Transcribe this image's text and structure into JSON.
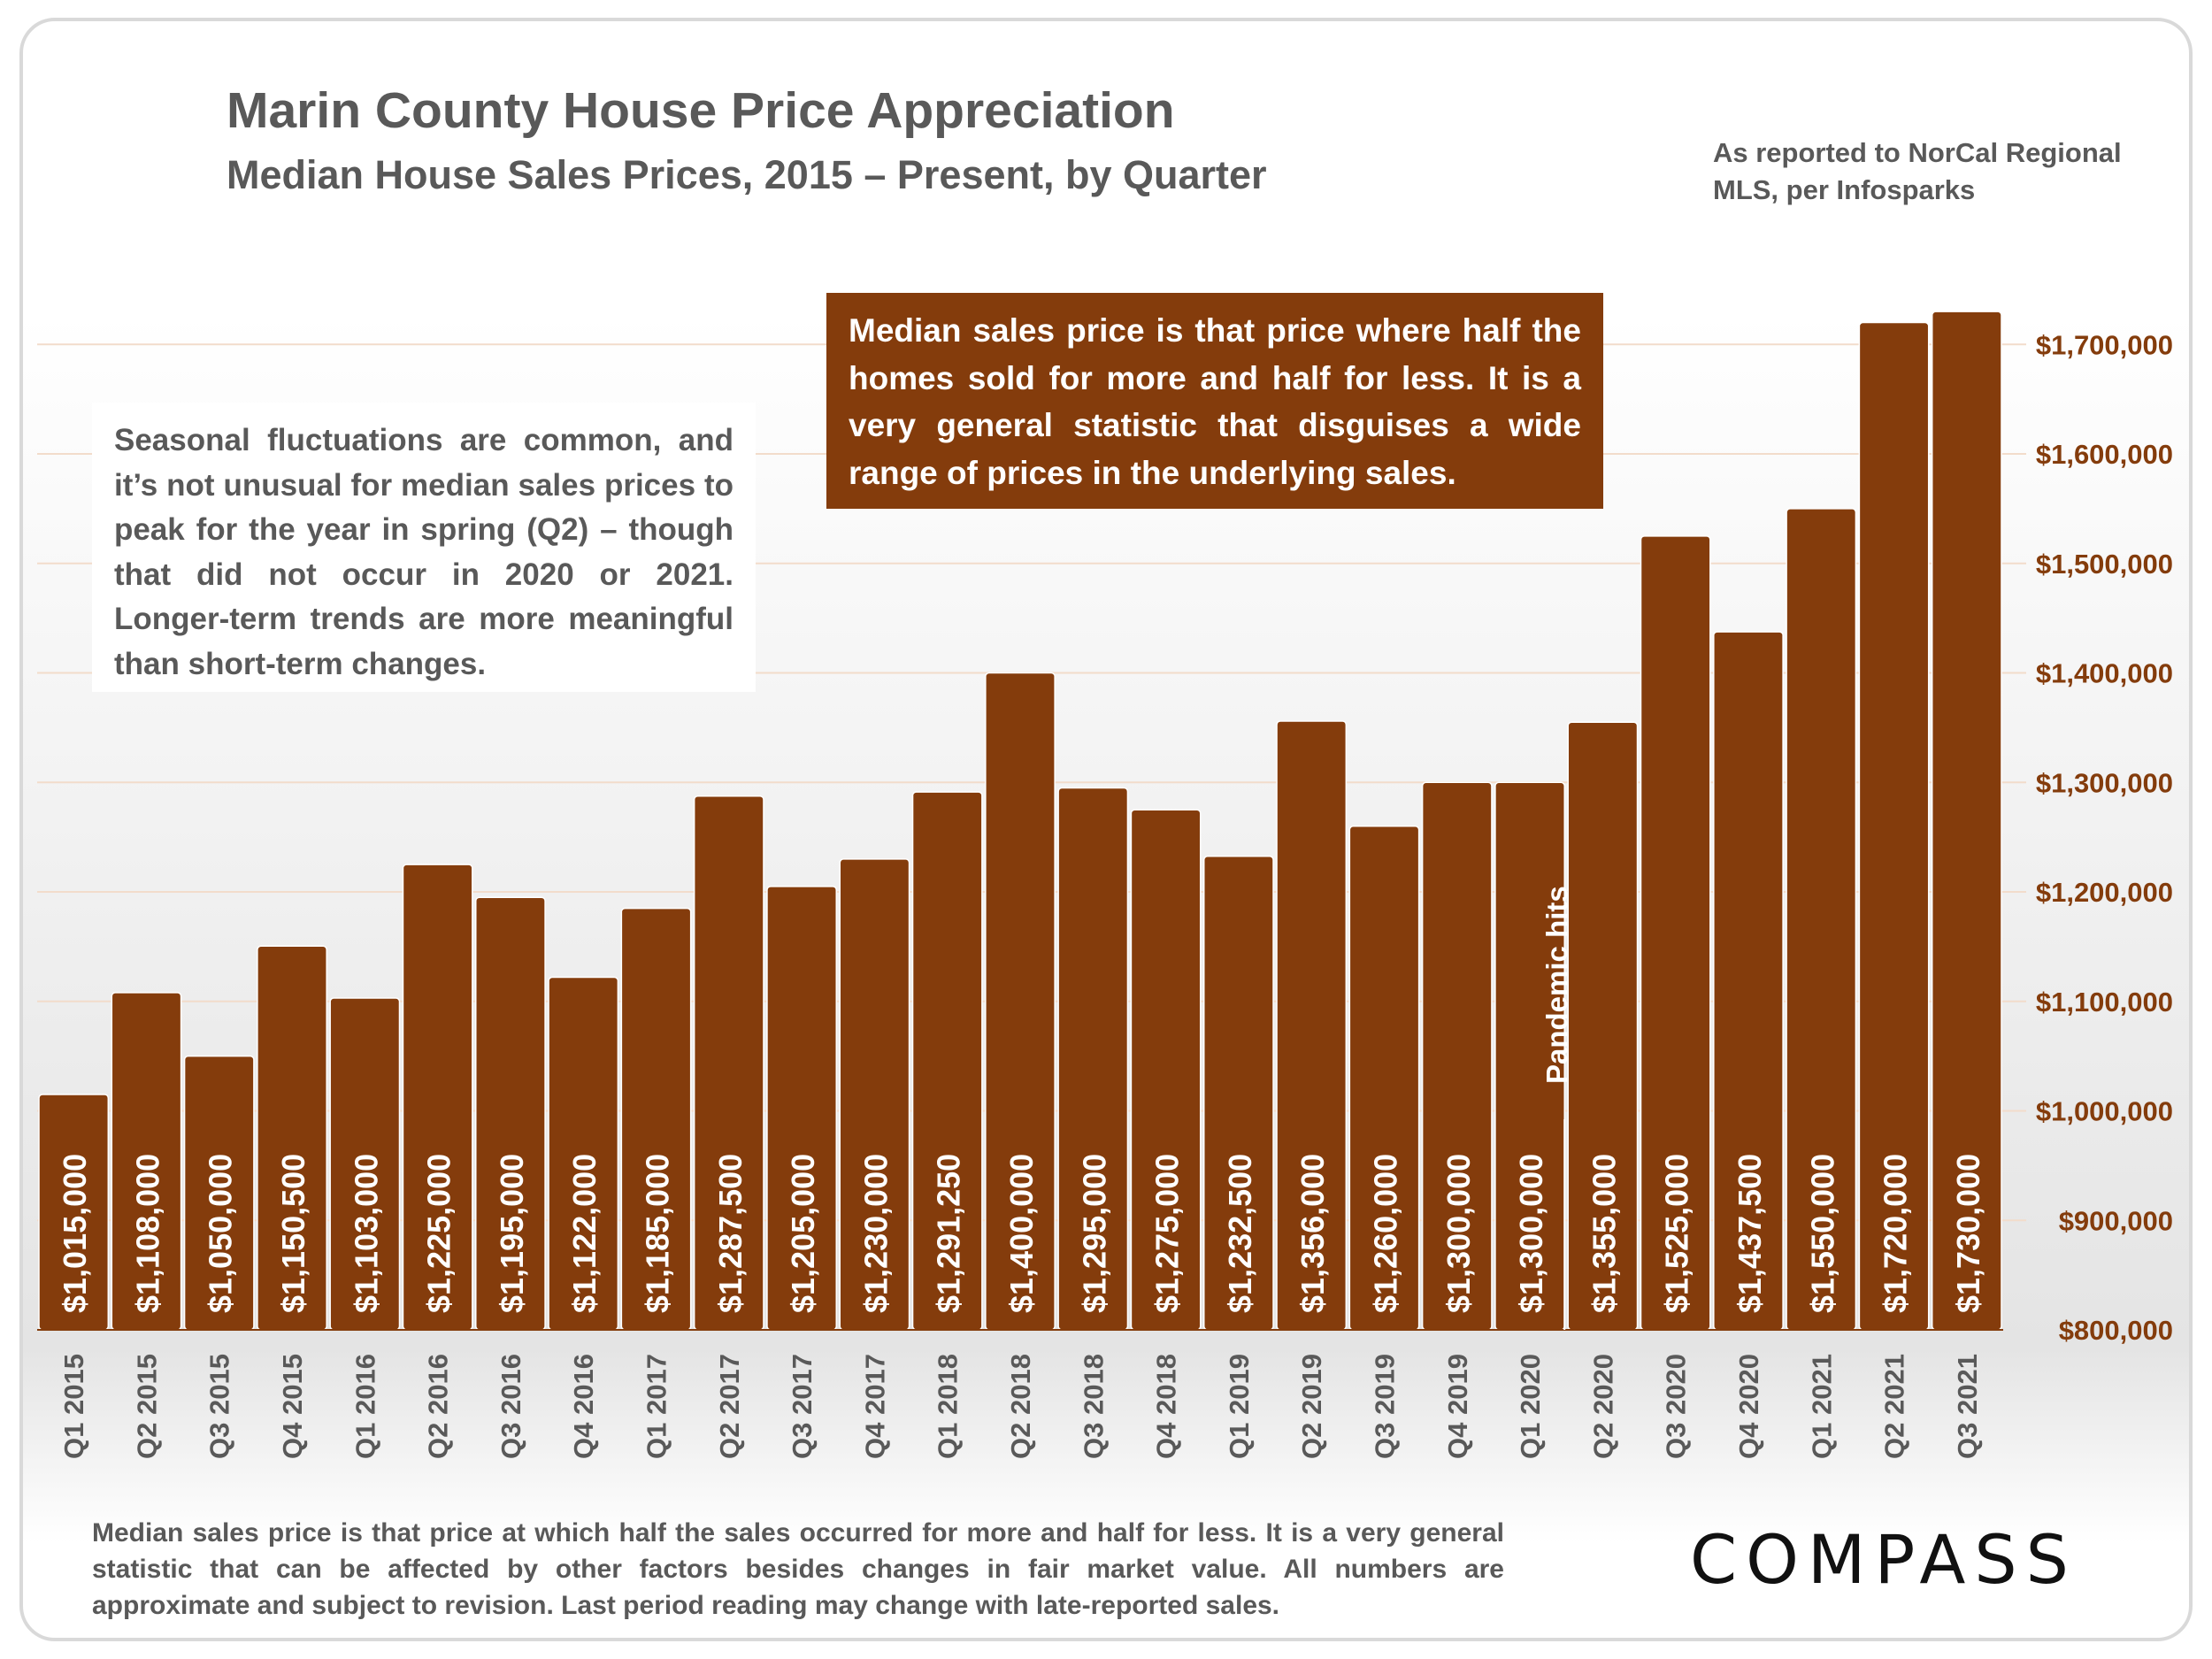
{
  "header": {
    "title": "Marin County House Price Appreciation",
    "subtitle": "Median House Sales Prices, 2015 – Present, by Quarter",
    "source": "As reported to NorCal Regional MLS, per Infosparks"
  },
  "notes": {
    "seasonal": "Seasonal fluctuations are common, and it’s not unusual for median sales prices to peak for the year in spring (Q2) – though that did not occur in 2020 or 2021. Longer-term trends are more meaningful than short-term changes.",
    "median_definition": "Median sales price is that price where half the homes sold for more and half for less. It is a very general statistic that disguises a wide range of prices in the underlying sales."
  },
  "footnote": "Median sales price is that price at which half the sales occurred for more and half for less. It is a very general statistic that can be affected by other factors besides changes in fair market value. All numbers are approximate and subject to revision. Last period reading may change with late-reported sales.",
  "logo": "COMPASS",
  "colors": {
    "bar": "#843c0c",
    "axis_label": "#843c0c",
    "tick_label": "#595959"
  },
  "chart_data": {
    "type": "bar",
    "title": "Marin County House Price Appreciation",
    "subtitle": "Median House Sales Prices, 2015 – Present, by Quarter",
    "xlabel": "",
    "ylabel": "",
    "y_axis_position": "right",
    "ylim": [
      800000,
      1730000
    ],
    "yticks": [
      800000,
      900000,
      1000000,
      1100000,
      1200000,
      1300000,
      1400000,
      1500000,
      1600000,
      1700000
    ],
    "ytick_labels": [
      "$800,000",
      "$900,000",
      "$1,000,000",
      "$1,100,000",
      "$1,200,000",
      "$1,300,000",
      "$1,400,000",
      "$1,500,000",
      "$1,600,000",
      "$1,700,000"
    ],
    "categories": [
      "Q1 2015",
      "Q2 2015",
      "Q3 2015",
      "Q4 2015",
      "Q1 2016",
      "Q2 2016",
      "Q3 2016",
      "Q4 2016",
      "Q1 2017",
      "Q2 2017",
      "Q3 2017",
      "Q4 2017",
      "Q1 2018",
      "Q2 2018",
      "Q3 2018",
      "Q4 2018",
      "Q1 2019",
      "Q2 2019",
      "Q3 2019",
      "Q4 2019",
      "Q1 2020",
      "Q2 2020",
      "Q3 2020",
      "Q4 2020",
      "Q1 2021",
      "Q2 2021",
      "Q3 2021"
    ],
    "values": [
      1015000,
      1108000,
      1050000,
      1150500,
      1103000,
      1225000,
      1195000,
      1122000,
      1185000,
      1287500,
      1205000,
      1230000,
      1291250,
      1400000,
      1295000,
      1275000,
      1232500,
      1356000,
      1260000,
      1300000,
      1300000,
      1355000,
      1525000,
      1437500,
      1550000,
      1720000,
      1730000
    ],
    "labels": [
      "$1,015,000",
      "$1,108,000",
      "$1,050,000",
      "$1,150,500",
      "$1,103,000",
      "$1,225,000",
      "$1,195,000",
      "$1,122,000",
      "$1,185,000",
      "$1,287,500",
      "$1,205,000",
      "$1,230,000",
      "$1,291,250",
      "$1,400,000",
      "$1,295,000",
      "$1,275,000",
      "$1,232,500",
      "$1,356,000",
      "$1,260,000",
      "$1,300,000",
      "$1,300,000",
      "$1,355,000",
      "$1,525,000",
      "$1,437,500",
      "$1,550,000",
      "$1,720,000",
      "$1,730,000"
    ],
    "annotations": [
      {
        "category": "Q1 2020",
        "text": "Pandemic hits"
      }
    ]
  }
}
